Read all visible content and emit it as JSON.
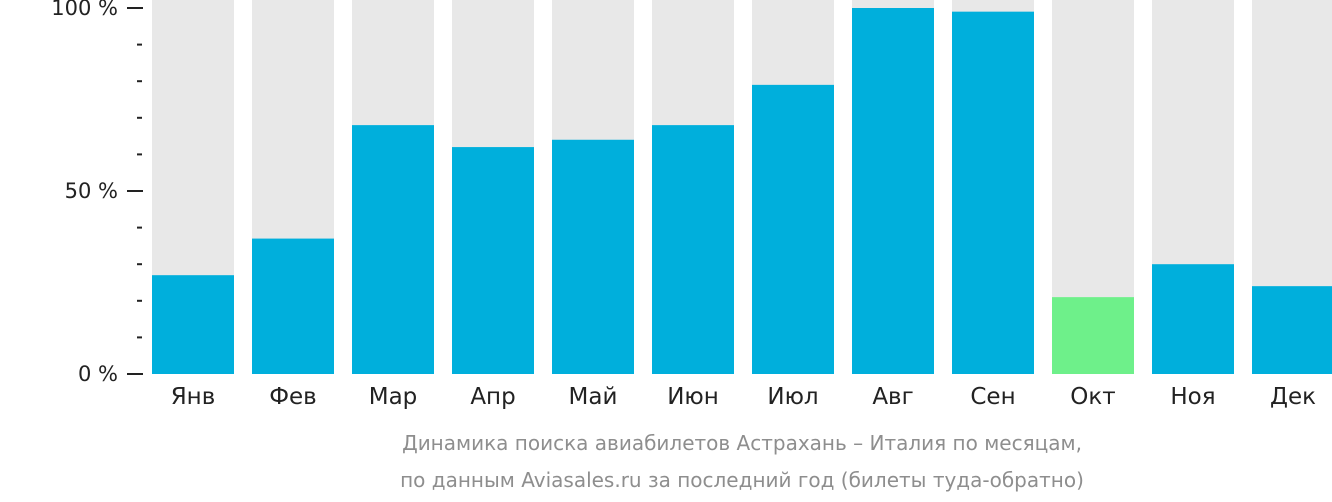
{
  "chart_data": {
    "type": "bar",
    "categories": [
      "Янв",
      "Фев",
      "Мар",
      "Апр",
      "Май",
      "Июн",
      "Июл",
      "Авг",
      "Сен",
      "Окт",
      "Ноя",
      "Дек"
    ],
    "values": [
      27,
      37,
      68,
      62,
      64,
      68,
      79,
      100,
      99,
      21,
      30,
      24
    ],
    "ylim": [
      0,
      100
    ],
    "yticks": [
      {
        "value": 0,
        "label": "0 %"
      },
      {
        "value": 50,
        "label": "50 %"
      },
      {
        "value": 100,
        "label": "100 %"
      }
    ],
    "minor_ticks": [
      10,
      20,
      30,
      40,
      60,
      70,
      80,
      90
    ],
    "highlight_index": 9,
    "caption_line1": "Динамика поиска авиабилетов Астрахань – Италия по месяцам,",
    "caption_line2": "по данным Aviasales.ru за последний год (билеты туда-обратно)",
    "grid": false,
    "colors": {
      "bar": "#00afdc",
      "highlight": "#6ef08a",
      "background_bar": "#e8e8e8",
      "axis": "#222222",
      "caption": "#8e8e8e"
    }
  }
}
